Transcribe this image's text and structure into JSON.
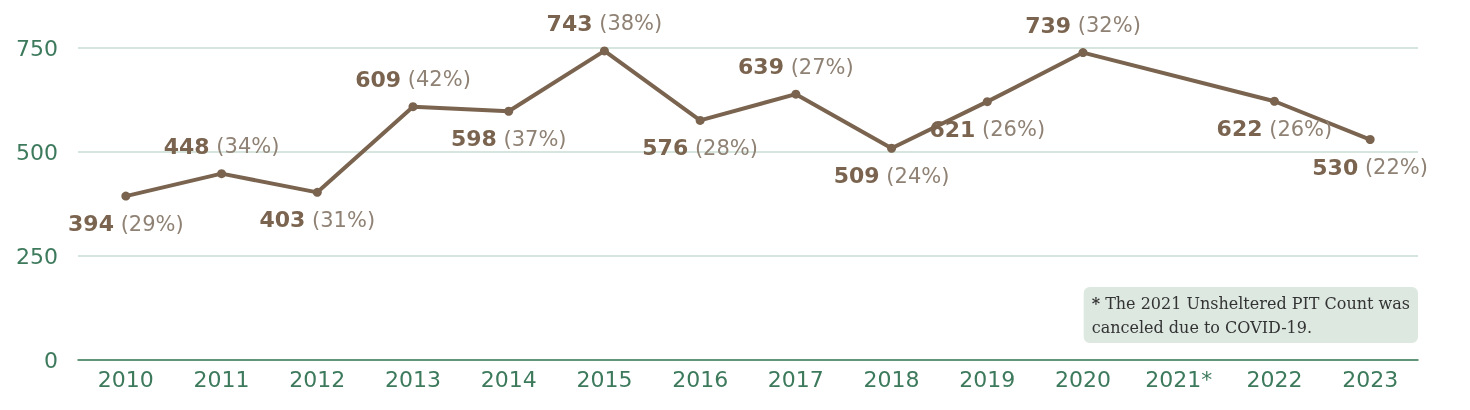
{
  "chart_data": {
    "type": "line",
    "categories": [
      "2010",
      "2011",
      "2012",
      "2013",
      "2014",
      "2015",
      "2016",
      "2017",
      "2018",
      "2019",
      "2020",
      "2021*",
      "2022",
      "2023"
    ],
    "values": [
      394,
      448,
      403,
      609,
      598,
      743,
      576,
      639,
      509,
      621,
      739,
      null,
      622,
      530
    ],
    "value_labels": [
      "394 (29%)",
      "448 (34%)",
      "403 (31%)",
      "609 (42%)",
      "598 (37%)",
      "743 (38%)",
      "576 (28%)",
      "639 (27%)",
      "509 (24%)",
      "621 (26%)",
      "739 (32%)",
      null,
      "622 (26%)",
      "530 (22%)"
    ],
    "color": "#7a644f",
    "ylim": [
      0,
      750
    ],
    "yticks": [
      0,
      250,
      500,
      750
    ],
    "grid": "y",
    "marker": "circle",
    "line_style": "solid",
    "annotations": [
      "* The 2021 Unsheltered PIT Count was canceled due to COVID-19."
    ]
  }
}
